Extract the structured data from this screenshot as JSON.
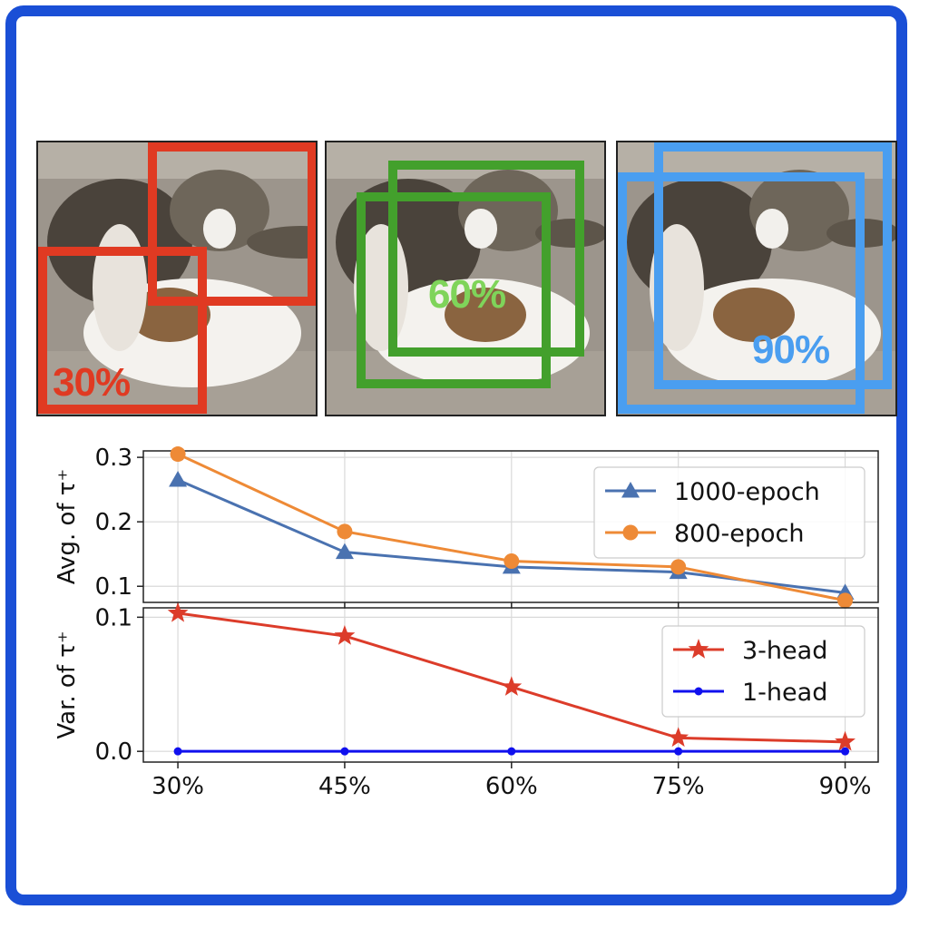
{
  "panels": [
    {
      "crop_label": "30%",
      "color": "#e03a22"
    },
    {
      "crop_label": "60%",
      "color": "#43a02c"
    },
    {
      "crop_label": "90%",
      "color": "#4a9ef0"
    }
  ],
  "chart_data": [
    {
      "type": "line",
      "categories": [
        "30%",
        "45%",
        "60%",
        "75%",
        "90%"
      ],
      "ylabel": "Avg. of τ⁺",
      "ylim": [
        0.075,
        0.31
      ],
      "yticks": [
        0.1,
        0.2,
        0.3
      ],
      "ytick_labels": [
        "0.1",
        "0.2",
        "0.3"
      ],
      "grid": true,
      "legend_position": "top-right",
      "series": [
        {
          "name": "1000-epoch",
          "values": [
            0.265,
            0.153,
            0.13,
            0.122,
            0.09
          ],
          "color": "#4a72b0",
          "marker": "triangle"
        },
        {
          "name": "800-epoch",
          "values": [
            0.305,
            0.185,
            0.139,
            0.13,
            0.078
          ],
          "color": "#ee8a36",
          "marker": "circle"
        }
      ]
    },
    {
      "type": "line",
      "categories": [
        "30%",
        "45%",
        "60%",
        "75%",
        "90%"
      ],
      "xtick_labels": [
        "30%",
        "45%",
        "60%",
        "75%",
        "90%"
      ],
      "ylabel": "Var. of τ⁺",
      "ylim": [
        -0.008,
        0.107
      ],
      "yticks": [
        0.0,
        0.1
      ],
      "ytick_labels": [
        "0.0",
        "0.1"
      ],
      "grid": true,
      "legend_position": "top-right",
      "series": [
        {
          "name": "3-head",
          "values": [
            0.103,
            0.086,
            0.048,
            0.01,
            0.007
          ],
          "color": "#dc3c2a",
          "marker": "star"
        },
        {
          "name": "1-head",
          "values": [
            0.0,
            0.0,
            0.0,
            0.0,
            0.0
          ],
          "color": "#1010ee",
          "marker": "dot"
        }
      ]
    }
  ]
}
